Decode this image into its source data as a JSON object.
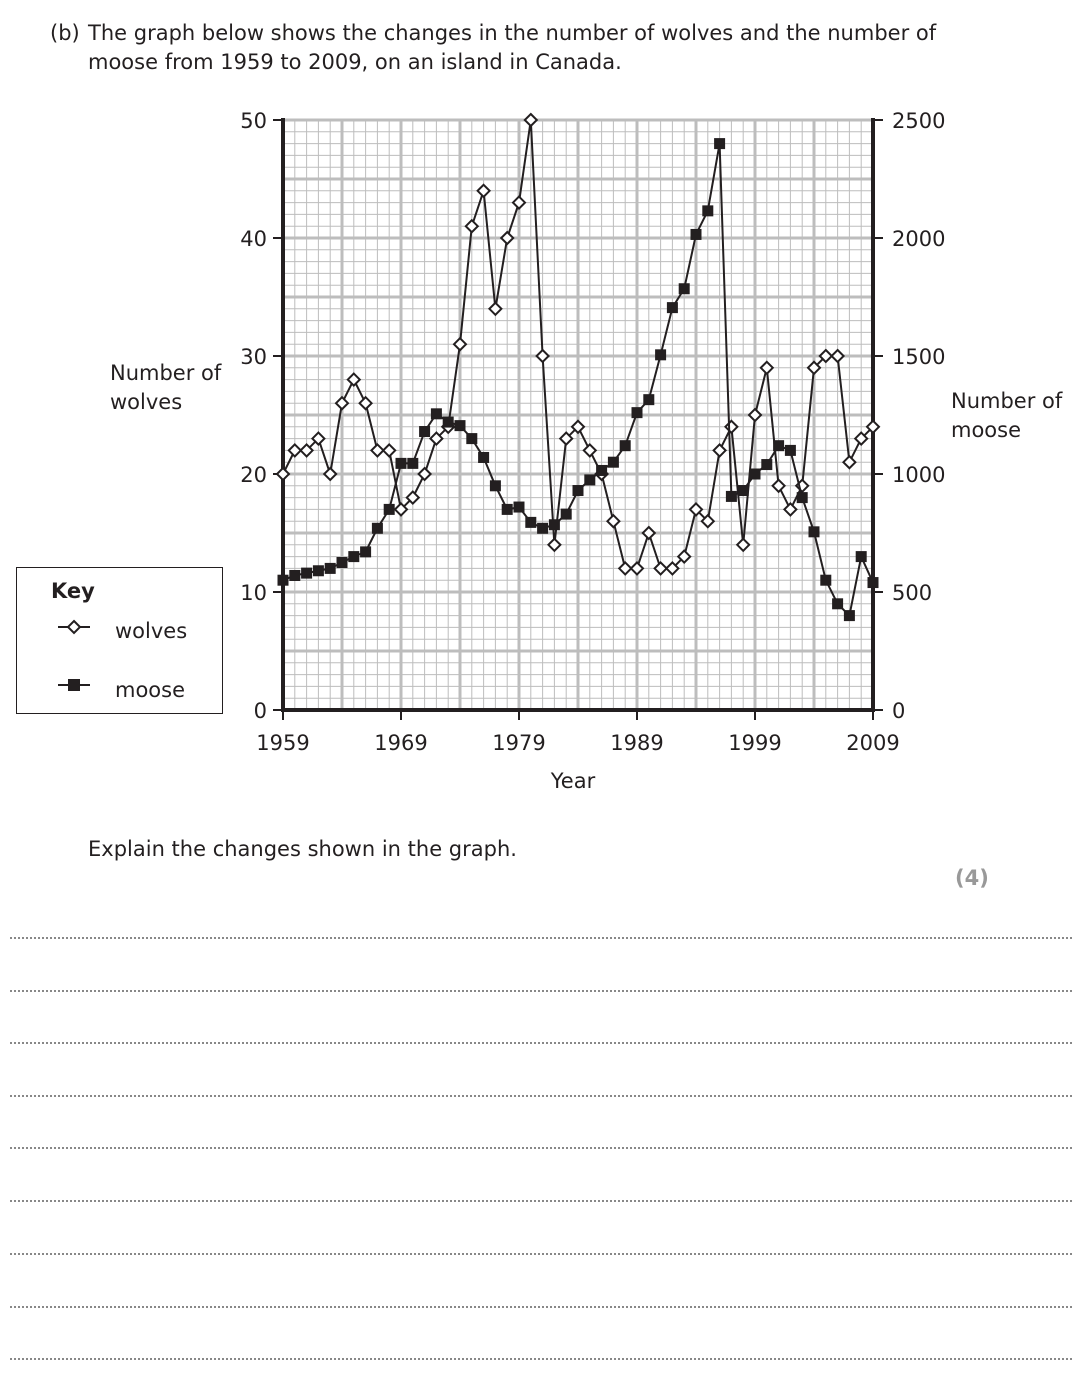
{
  "question": {
    "label": "(b)",
    "text": "The graph below shows the changes in the number of wolves and the number of moose from 1959 to 2009, on an island in Canada.",
    "prompt": "Explain the changes shown in the graph.",
    "marks": "(4)"
  },
  "key": {
    "title": "Key",
    "wolves": "wolves",
    "moose": "moose"
  },
  "chart_data": {
    "type": "line",
    "xlabel": "Year",
    "ylabel_left": [
      "Number of",
      "wolves"
    ],
    "ylabel_right": [
      "Number of",
      "moose"
    ],
    "x_ticks": [
      "1959",
      "1969",
      "1979",
      "1989",
      "1999",
      "2009"
    ],
    "y_left_ticks": [
      "0",
      "10",
      "20",
      "30",
      "40",
      "50"
    ],
    "y_right_ticks": [
      "0",
      "500",
      "1000",
      "1500",
      "2000",
      "2500"
    ],
    "xlim": [
      1959,
      2009
    ],
    "ylim_left": [
      0,
      50
    ],
    "ylim_right": [
      0,
      2500
    ],
    "grid": true,
    "legend": "left",
    "x": [
      1959,
      1960,
      1961,
      1962,
      1963,
      1964,
      1965,
      1966,
      1967,
      1968,
      1969,
      1970,
      1971,
      1972,
      1973,
      1974,
      1975,
      1976,
      1977,
      1978,
      1979,
      1980,
      1981,
      1982,
      1983,
      1984,
      1985,
      1986,
      1987,
      1988,
      1989,
      1990,
      1991,
      1992,
      1993,
      1994,
      1995,
      1996,
      1997,
      1998,
      1999,
      2000,
      2001,
      2002,
      2003,
      2004,
      2005,
      2006,
      2007,
      2008,
      2009
    ],
    "series": [
      {
        "name": "wolves",
        "axis": "left",
        "marker": "open-diamond",
        "values": [
          20,
          22,
          22,
          23,
          20,
          26,
          28,
          26,
          22,
          22,
          17,
          18,
          20,
          23,
          24,
          31,
          41,
          44,
          34,
          40,
          43,
          50,
          30,
          14,
          23,
          24,
          22,
          20,
          16,
          12,
          12,
          15,
          12,
          12,
          13,
          17,
          16,
          22,
          24,
          14,
          25,
          29,
          19,
          17,
          19,
          29,
          30,
          30,
          21,
          23,
          24
        ]
      },
      {
        "name": "moose",
        "axis": "right",
        "marker": "filled-square",
        "values": [
          550,
          570,
          580,
          590,
          600,
          625,
          650,
          670,
          770,
          850,
          1045,
          1045,
          1180,
          1255,
          1220,
          1205,
          1150,
          1070,
          950,
          850,
          860,
          795,
          770,
          785,
          830,
          930,
          975,
          1015,
          1050,
          1120,
          1260,
          1315,
          1505,
          1705,
          1785,
          2015,
          2115,
          2400,
          905,
          930,
          1000,
          1040,
          1120,
          1100,
          900,
          755,
          550,
          450,
          400,
          650,
          540
        ]
      }
    ]
  }
}
